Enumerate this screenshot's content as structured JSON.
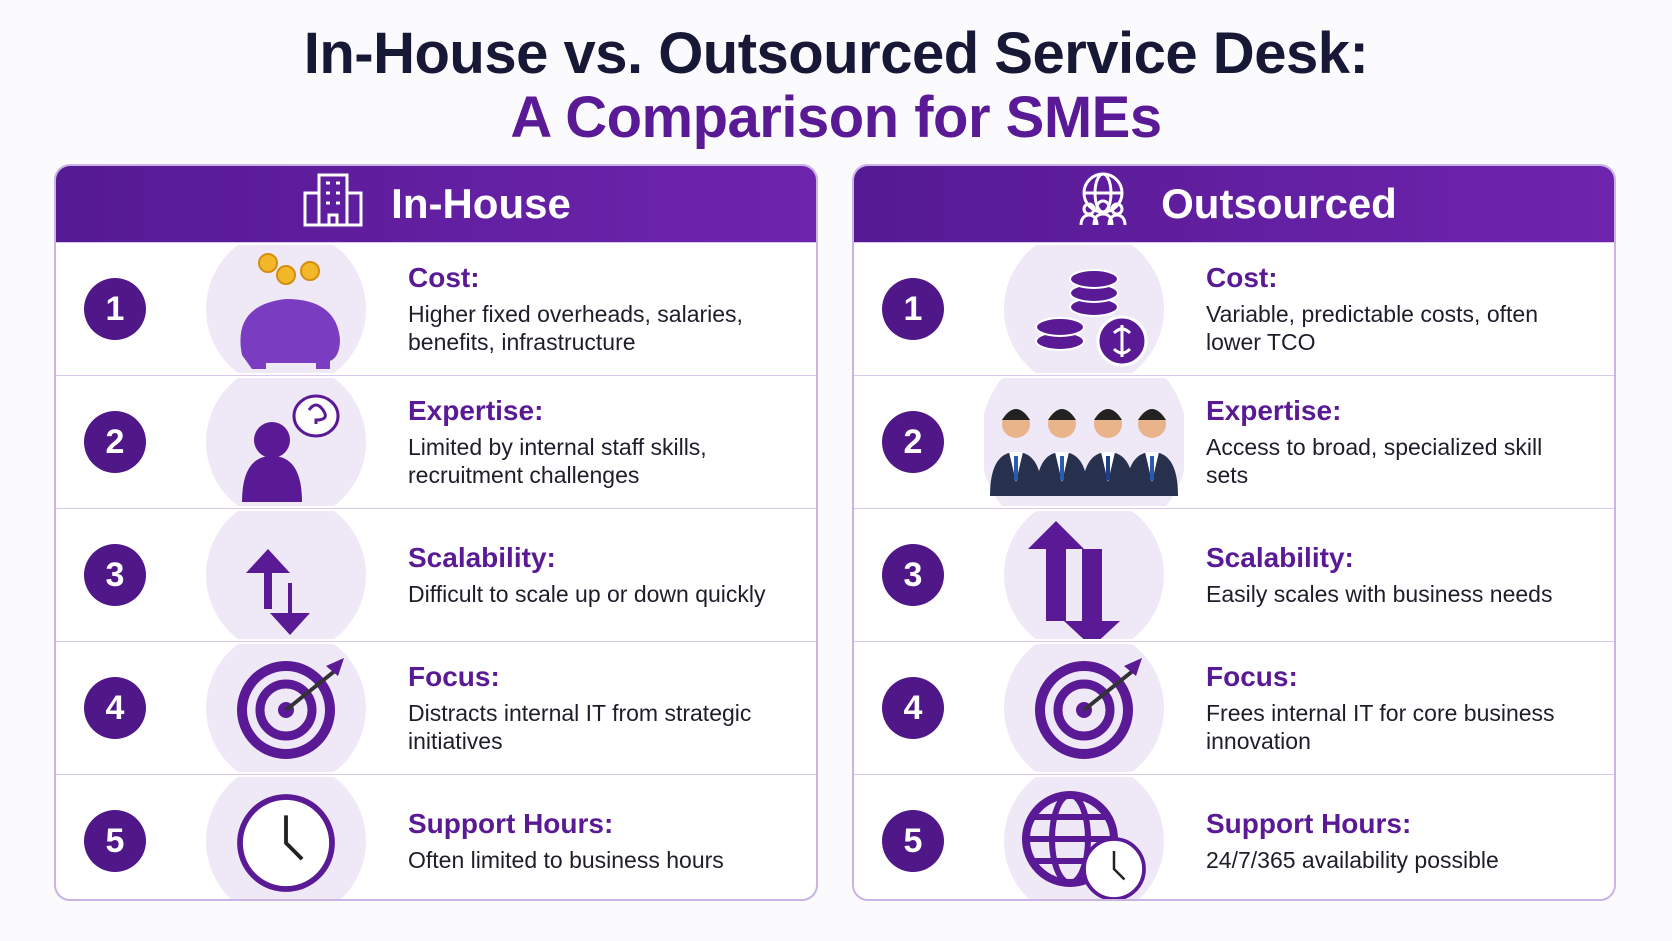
{
  "header": {
    "title_line1": "In-House vs. Outsourced Service Desk:",
    "title_line2": "A Comparison for SMEs"
  },
  "panels": [
    {
      "title": "In-House",
      "rows": [
        {
          "number": "1",
          "label": "Cost:",
          "text": "Higher fixed overheads, salaries, benefits, infrastructure"
        },
        {
          "number": "2",
          "label": "Expertise:",
          "text": "Limited by internal staff skills, recruitment challenges"
        },
        {
          "number": "3",
          "label": "Scalability:",
          "text": "Difficult to scale up or down quickly"
        },
        {
          "number": "4",
          "label": "Focus:",
          "text": "Distracts internal IT from strategic initiatives"
        },
        {
          "number": "5",
          "label": "Support Hours:",
          "text": "Often limited to business hours"
        }
      ]
    },
    {
      "title": "Outsourced",
      "rows": [
        {
          "number": "1",
          "label": "Cost:",
          "text": "Variable, predictable costs, often lower TCO"
        },
        {
          "number": "2",
          "label": "Expertise:",
          "text": "Access to broad, specialized skill sets"
        },
        {
          "number": "3",
          "label": "Scalability:",
          "text": "Easily scales with business needs"
        },
        {
          "number": "4",
          "label": "Focus:",
          "text": "Frees internal IT for core business innovation"
        },
        {
          "number": "5",
          "label": "Support Hours:",
          "text": "24/7/365 availability possible"
        }
      ]
    }
  ]
}
